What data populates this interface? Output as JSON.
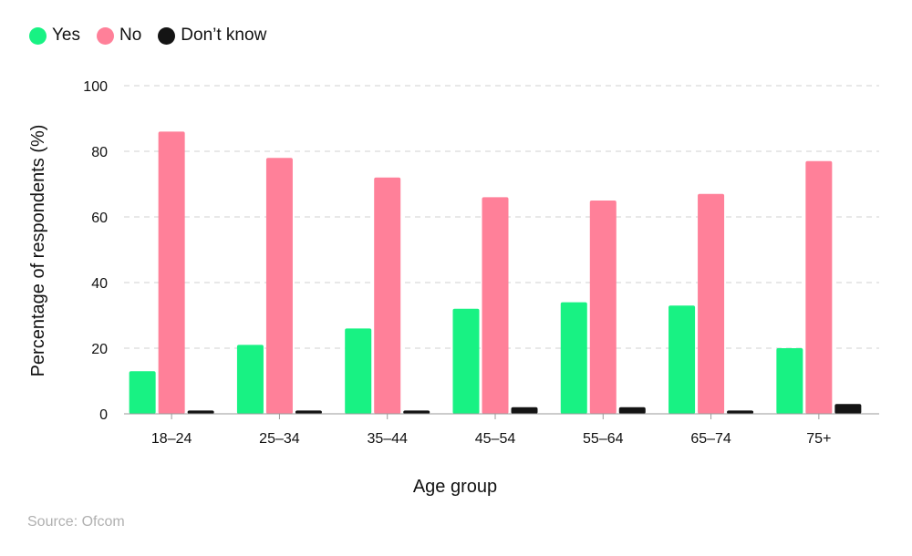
{
  "colors": {
    "yes": "#18f283",
    "no": "#ff8099",
    "dont_know": "#141414",
    "grid": "#d0d0d0",
    "axis": "#999999"
  },
  "legend": [
    {
      "label": "Yes",
      "color": "#18f283"
    },
    {
      "label": "No",
      "color": "#ff8099"
    },
    {
      "label": "Don’t know",
      "color": "#141414"
    }
  ],
  "source": "Source: Ofcom",
  "chart_data": {
    "type": "bar",
    "title": "",
    "xlabel": "Age group",
    "ylabel": "Percentage of respondents (%)",
    "ylim": [
      0,
      100
    ],
    "yticks": [
      0,
      20,
      40,
      60,
      80,
      100
    ],
    "grid": true,
    "legend_position": "top-left",
    "categories": [
      "18–24",
      "25–34",
      "35–44",
      "45–54",
      "55–64",
      "65–74",
      "75+"
    ],
    "series": [
      {
        "name": "Yes",
        "color": "#18f283",
        "values": [
          13,
          21,
          26,
          32,
          34,
          33,
          20
        ]
      },
      {
        "name": "No",
        "color": "#ff8099",
        "values": [
          86,
          78,
          72,
          66,
          65,
          67,
          77
        ]
      },
      {
        "name": "Don’t know",
        "color": "#141414",
        "values": [
          1,
          1,
          1,
          2,
          2,
          1,
          3
        ]
      }
    ]
  }
}
